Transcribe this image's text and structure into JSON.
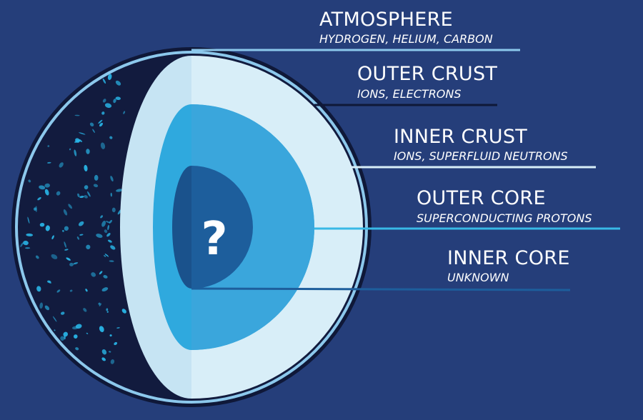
{
  "colors": {
    "background": "#253e7a",
    "rim": "#0f1838",
    "surface": "#121b3e",
    "atmosphere": "#8cc8ec",
    "outer_crust": "#d8eef8",
    "inner_crust": "#38b8e6",
    "outer_core": "#3aa6dc",
    "inner_core": "#1d5e9c",
    "speckle": "#29b8ea"
  },
  "center_mark": "?",
  "layers": [
    {
      "id": "atmosphere",
      "title": "ATMOSPHERE",
      "subtitle": "HYDROGEN, HELIUM, CARBON",
      "line_color": "#8cc8ec"
    },
    {
      "id": "outer-crust",
      "title": "OUTER CRUST",
      "subtitle": "IONS, ELECTRONS",
      "line_color": "#0f1838"
    },
    {
      "id": "inner-crust",
      "title": "INNER CRUST",
      "subtitle": "IONS, SUPERFLUID NEUTRONS",
      "line_color": "#d8eef8"
    },
    {
      "id": "outer-core",
      "title": "OUTER CORE",
      "subtitle": "SUPERCONDUCTING PROTONS",
      "line_color": "#38b8e6"
    },
    {
      "id": "inner-core",
      "title": "INNER CORE",
      "subtitle": "UNKNOWN",
      "line_color": "#1d5e9c"
    }
  ]
}
